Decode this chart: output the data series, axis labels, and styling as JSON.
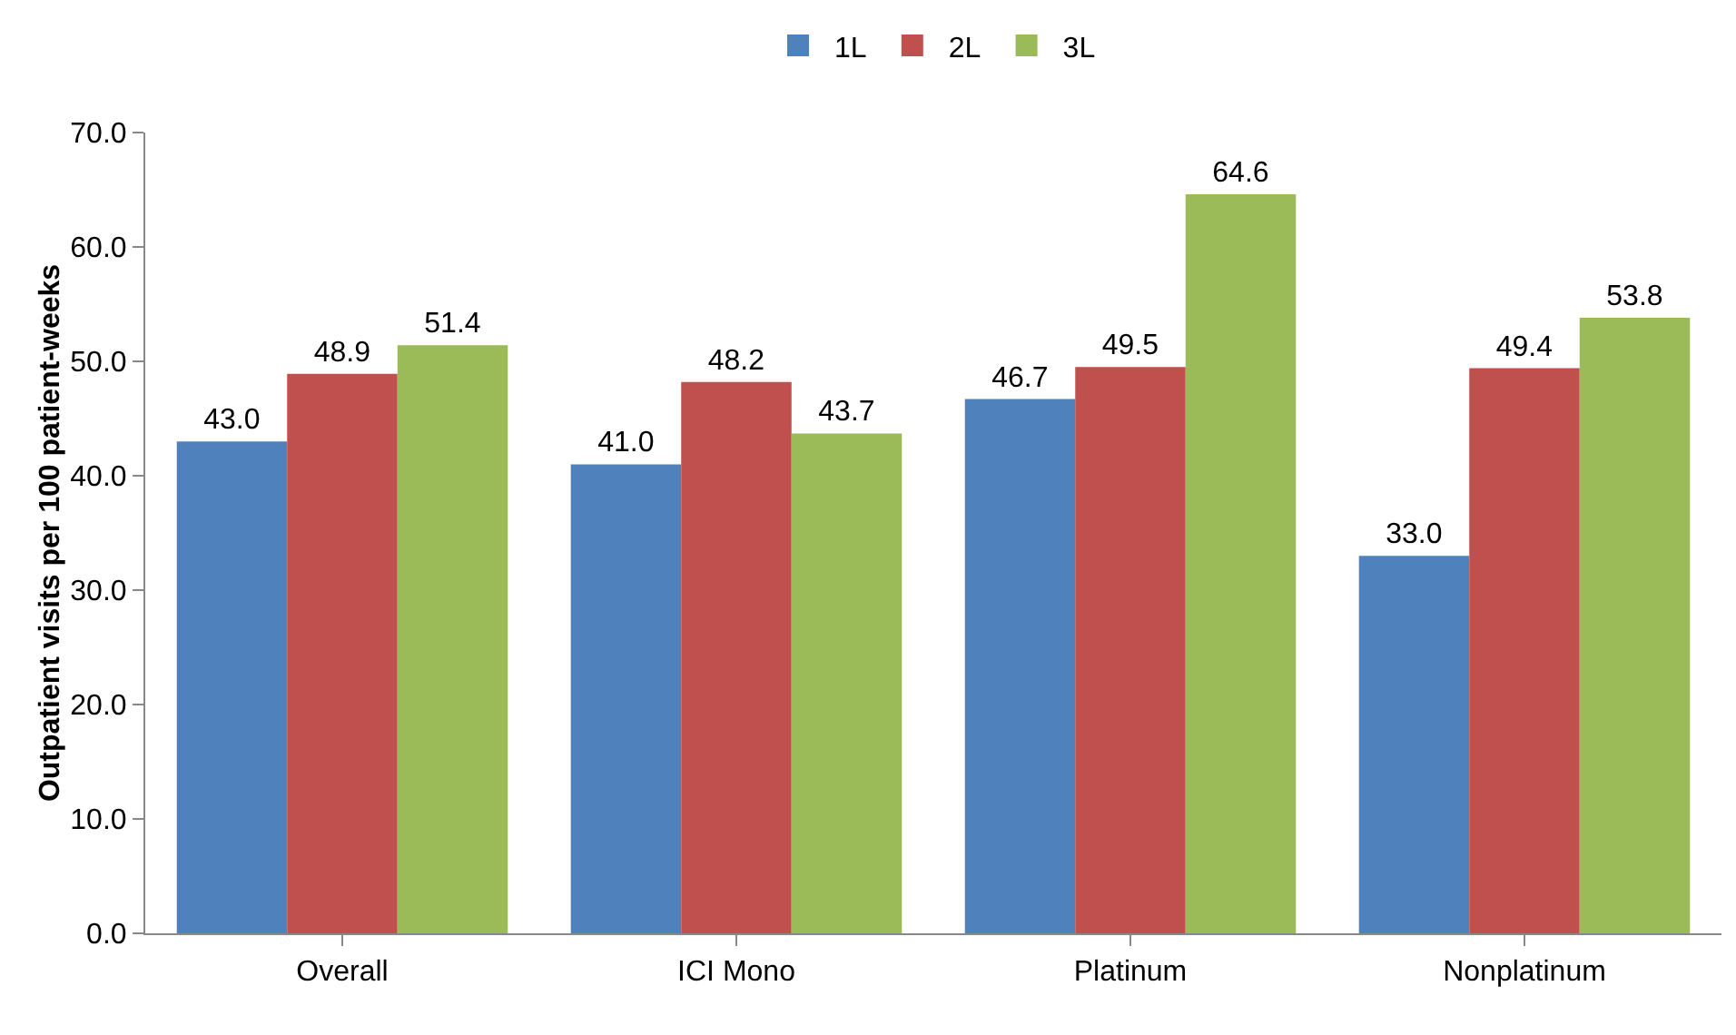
{
  "chart_data": {
    "type": "bar",
    "ylabel": "Outpatient visits per 100 patient-weeks",
    "categories": [
      "Overall",
      "ICI Mono",
      "Platinum",
      "Nonplatinum"
    ],
    "series": [
      {
        "name": "1L",
        "color": "#4f81bd",
        "values": [
          43.0,
          41.0,
          46.7,
          33.0
        ],
        "value_labels": [
          "43.0",
          "41.0",
          "46.7",
          "33.0"
        ]
      },
      {
        "name": "2L",
        "color": "#c0504d",
        "values": [
          48.9,
          48.2,
          49.5,
          49.4
        ],
        "value_labels": [
          "48.9",
          "48.2",
          "49.5",
          "49.4"
        ]
      },
      {
        "name": "3L",
        "color": "#9bbb59",
        "values": [
          51.4,
          43.7,
          64.6,
          53.8
        ],
        "value_labels": [
          "51.4",
          "43.7",
          "64.6",
          "53.8"
        ]
      }
    ],
    "ylim": [
      0,
      70
    ],
    "yticks": [
      {
        "value": 0,
        "label": "0.0"
      },
      {
        "value": 10,
        "label": "10.0"
      },
      {
        "value": 20,
        "label": "20.0"
      },
      {
        "value": 30,
        "label": "30.0"
      },
      {
        "value": 40,
        "label": "40.0"
      },
      {
        "value": 50,
        "label": "50.0"
      },
      {
        "value": 60,
        "label": "60.0"
      },
      {
        "value": 70,
        "label": "70.0"
      }
    ],
    "grid": false,
    "legend": "top"
  }
}
